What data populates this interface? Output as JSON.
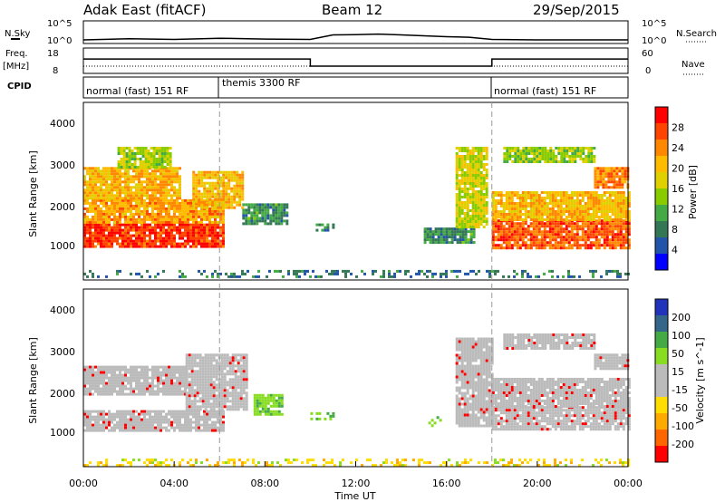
{
  "header": {
    "radar": "Adak East (fitACF)",
    "beam": "Beam 12",
    "date": "29/Sep/2015"
  },
  "noise_panel": {
    "left_label": "N.Sky",
    "right_label": "N.Search",
    "left_ticks": [
      "10^5",
      "10^0"
    ],
    "right_ticks": [
      "10^5",
      "10^0"
    ]
  },
  "freq_panel": {
    "left_label_line1": "Freq.",
    "left_label_line2": "[MHz]",
    "left_ticks": [
      "18",
      "8"
    ],
    "right_ticks": [
      "60",
      "0"
    ],
    "right_label": "Nave"
  },
  "cpid_panel": {
    "label": "CPID",
    "segments": [
      "normal (fast) 151 RF",
      "themis 3300 RF",
      "normal (fast) 151 RF"
    ]
  },
  "power_panel": {
    "ylabel": "Slant Range [km]",
    "yticks": [
      "4000",
      "3000",
      "2000",
      "1000"
    ],
    "colorbar_label": "Power [dB]",
    "colorbar_ticks": [
      "28",
      "24",
      "20",
      "16",
      "12",
      "8",
      "4"
    ],
    "colors": [
      "#ff0000",
      "#ff4400",
      "#ff8800",
      "#ffbb00",
      "#e0d000",
      "#88cc00",
      "#44aa44",
      "#337755",
      "#2255aa",
      "#0000ff"
    ]
  },
  "velocity_panel": {
    "ylabel": "Slant Range [km]",
    "yticks": [
      "4000",
      "3000",
      "2000",
      "1000"
    ],
    "colorbar_label": "Velocity [m s^-1]",
    "colorbar_ticks": [
      "200",
      "100",
      "50",
      "15",
      "-15",
      "-50",
      "-100",
      "-200"
    ],
    "colors": [
      "#2233bb",
      "#336688",
      "#44aa44",
      "#88dd22",
      "#bbbbbb",
      "#bbbbbb",
      "#ffdd00",
      "#ffaa00",
      "#ff6600",
      "#ff0000"
    ]
  },
  "x_axis": {
    "label": "Time UT",
    "ticks": [
      "00:00",
      "04:00",
      "08:00",
      "12:00",
      "16:00",
      "20:00",
      "00:00"
    ]
  },
  "chart_data": [
    {
      "type": "line",
      "title": "Sky noise",
      "x_unit": "hours UT",
      "y_scale": "log",
      "ylim": [
        1,
        100000
      ],
      "x": [
        0,
        2,
        4,
        6,
        8,
        10,
        11,
        12,
        13,
        14,
        16,
        17,
        18,
        20,
        22,
        24
      ],
      "values": [
        3,
        6,
        4,
        8,
        5,
        4,
        60,
        70,
        100,
        60,
        20,
        15,
        4,
        3,
        3,
        3
      ]
    },
    {
      "type": "line",
      "title": "Frequency",
      "x_unit": "hours UT",
      "ylim": [
        8,
        18
      ],
      "x": [
        0,
        10,
        10,
        18,
        18,
        24
      ],
      "values": [
        13.8,
        13.8,
        10.5,
        10.5,
        13.8,
        13.8
      ]
    },
    {
      "type": "scatter",
      "title": "Power",
      "x_unit": "hours UT",
      "y_unit": "km",
      "xlim": [
        0,
        24
      ],
      "ylim": [
        200,
        4600
      ],
      "colorbar_range_dB": [
        0,
        30
      ],
      "regions": [
        {
          "t0": 0,
          "t1": 6.2,
          "r0": 1000,
          "r1": 1600,
          "level": 28
        },
        {
          "t0": 0,
          "t1": 6.2,
          "r0": 1600,
          "r1": 2200,
          "level": 22
        },
        {
          "t0": 0,
          "t1": 4.2,
          "r0": 2200,
          "r1": 3000,
          "level": 20
        },
        {
          "t0": 1.5,
          "t1": 3.8,
          "r0": 3000,
          "r1": 3500,
          "level": 14
        },
        {
          "t0": 4.8,
          "t1": 7.0,
          "r0": 2000,
          "r1": 2900,
          "level": 20
        },
        {
          "t0": 7.0,
          "t1": 9.0,
          "r0": 1600,
          "r1": 2100,
          "level": 8
        },
        {
          "t0": 10.0,
          "t1": 11.0,
          "r0": 1450,
          "r1": 1600,
          "level": 7
        },
        {
          "t0": 15.0,
          "t1": 17.2,
          "r0": 1100,
          "r1": 1500,
          "level": 8
        },
        {
          "t0": 16.4,
          "t1": 17.8,
          "r0": 1500,
          "r1": 3500,
          "level": 16
        },
        {
          "t0": 18.0,
          "t1": 24,
          "r0": 1000,
          "r1": 1700,
          "level": 26
        },
        {
          "t0": 18.0,
          "t1": 24,
          "r0": 1700,
          "r1": 2400,
          "level": 20
        },
        {
          "t0": 18.5,
          "t1": 22.5,
          "r0": 3100,
          "r1": 3500,
          "level": 14
        },
        {
          "t0": 22.5,
          "t1": 24,
          "r0": 2500,
          "r1": 3000,
          "level": 24
        },
        {
          "t0": 0,
          "t1": 24,
          "r0": 250,
          "r1": 450,
          "level": 6
        }
      ]
    },
    {
      "type": "scatter",
      "title": "Velocity",
      "x_unit": "hours UT",
      "y_unit": "km",
      "xlim": [
        0,
        24
      ],
      "ylim": [
        200,
        4600
      ],
      "colorbar_range_ms": [
        -200,
        200
      ],
      "regions": [
        {
          "t0": 0,
          "t1": 6.2,
          "r0": 1100,
          "r1": 1600,
          "vel": 0
        },
        {
          "t0": 0,
          "t1": 4.5,
          "r0": 2000,
          "r1": 2700,
          "vel": 0
        },
        {
          "t0": 4.5,
          "t1": 7.2,
          "r0": 1600,
          "r1": 3000,
          "vel": 0
        },
        {
          "t0": 7.5,
          "t1": 8.8,
          "r0": 1500,
          "r1": 2000,
          "vel": 40
        },
        {
          "t0": 10.0,
          "t1": 11.0,
          "r0": 1400,
          "r1": 1550,
          "vel": 40
        },
        {
          "t0": 15.2,
          "t1": 15.8,
          "r0": 1200,
          "r1": 1450,
          "vel": 40
        },
        {
          "t0": 16.4,
          "t1": 18.0,
          "r0": 1200,
          "r1": 3400,
          "vel": 0
        },
        {
          "t0": 18.0,
          "t1": 24,
          "r0": 1100,
          "r1": 1700,
          "vel": 0
        },
        {
          "t0": 18.0,
          "t1": 24,
          "r0": 1700,
          "r1": 2400,
          "vel": 0
        },
        {
          "t0": 18.5,
          "t1": 22.5,
          "r0": 3100,
          "r1": 3500,
          "vel": 0
        },
        {
          "t0": 22.5,
          "t1": 24,
          "r0": 2600,
          "r1": 3000,
          "vel": 0
        },
        {
          "t0": 0,
          "t1": 24,
          "r0": 250,
          "r1": 400,
          "vel": -40
        }
      ]
    }
  ]
}
